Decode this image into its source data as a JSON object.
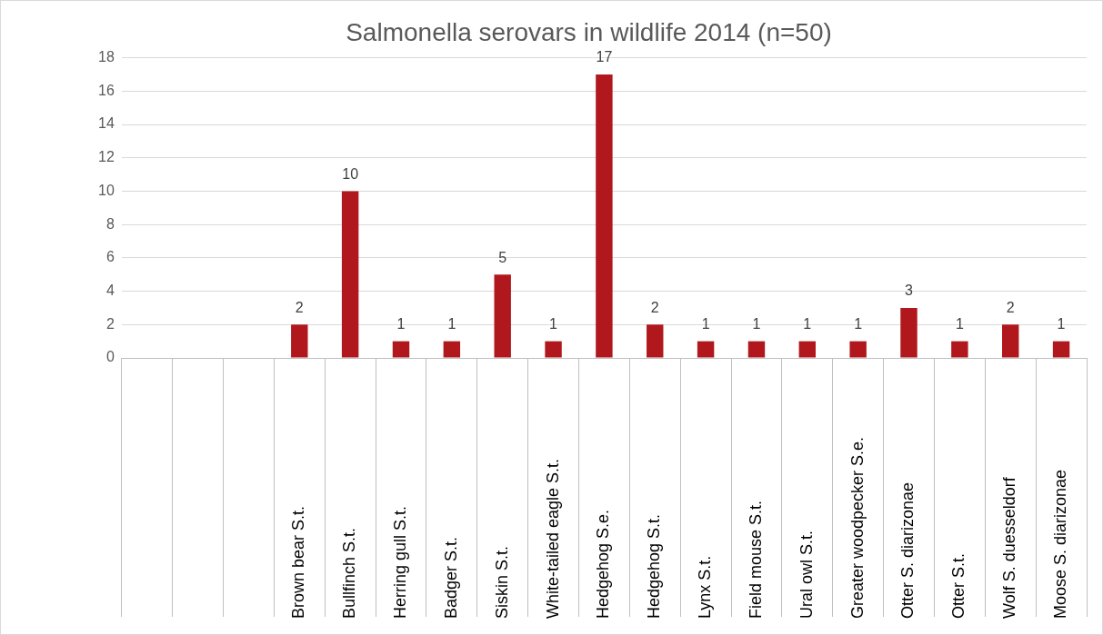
{
  "chart_data": {
    "type": "bar",
    "title": "Salmonella serovars in wildlife 2014 (n=50)",
    "categories": [
      null,
      null,
      null,
      "Brown bear S.t.",
      "Bullfinch S.t.",
      "Herring gull S.t.",
      "Badger S.t.",
      "Siskin S.t.",
      "White-tailed eagle S.t.",
      "Hedgehog S.e.",
      "Hedgehog S.t.",
      "Lynx S.t.",
      "Field mouse S.t.",
      "Ural owl S.t.",
      "Greater woodpecker S.e.",
      "Otter S. diarizonae",
      "Otter S.t.",
      "Wolf S. duesseldorf",
      "Moose S. diarizonae"
    ],
    "values": [
      null,
      null,
      null,
      2,
      10,
      1,
      1,
      5,
      1,
      17,
      2,
      1,
      1,
      1,
      1,
      3,
      1,
      2,
      1
    ],
    "color": "#b0181d",
    "ylim": [
      0,
      18
    ],
    "yticks": [
      0,
      2,
      4,
      6,
      8,
      10,
      12,
      14,
      16,
      18
    ],
    "grid": "y",
    "legend": false,
    "data_labels": true
  }
}
